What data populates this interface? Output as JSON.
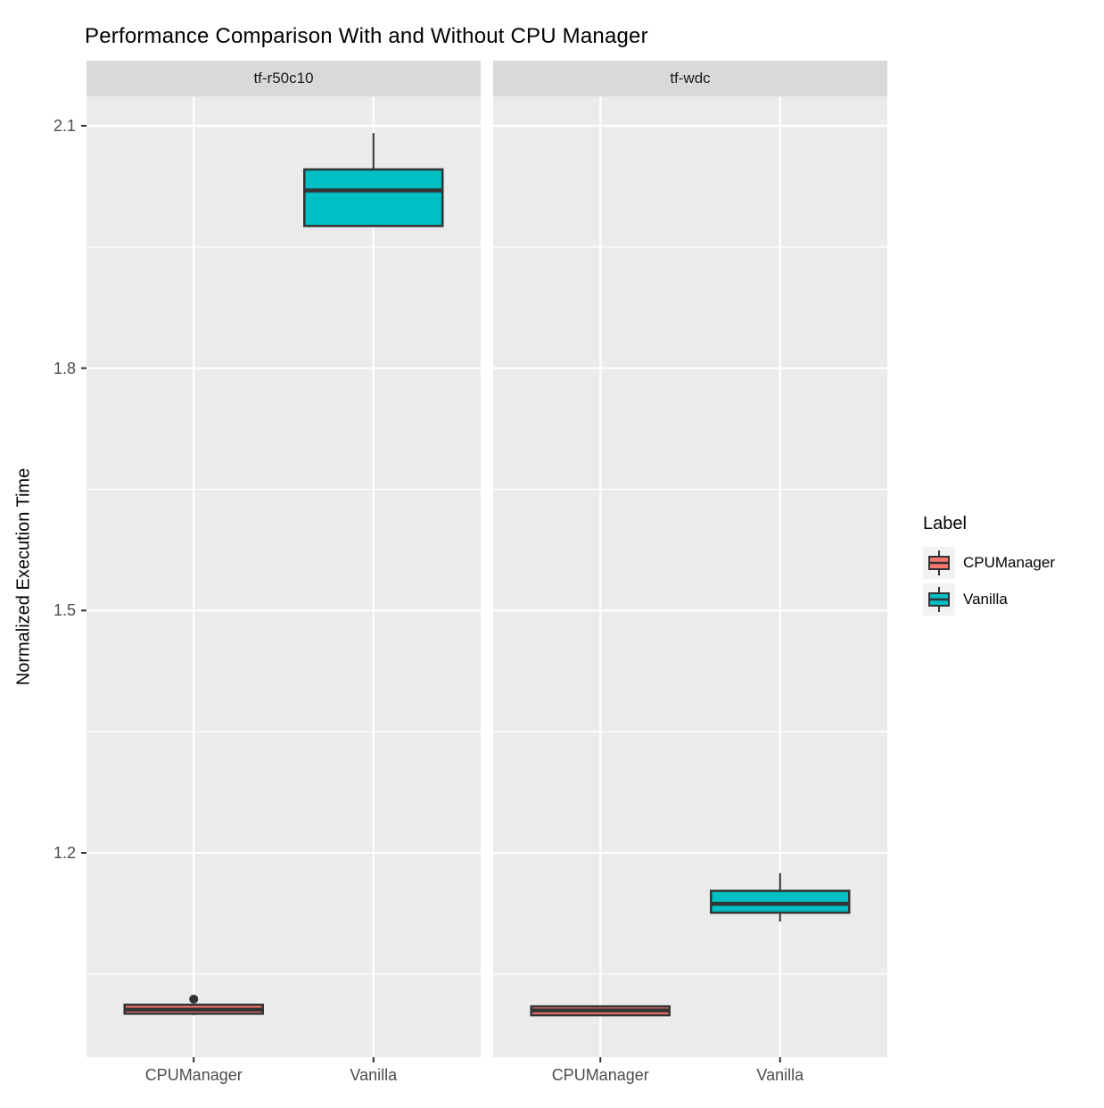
{
  "title": "Performance Comparison With and Without CPU Manager",
  "chart_data": {
    "type": "boxplot",
    "title": "Performance Comparison With and Without CPU Manager",
    "xlabel": "",
    "ylabel": "Normalized Execution Time",
    "categories": [
      "CPUManager",
      "Vanilla"
    ],
    "y_major_ticks": [
      2.1,
      1.8,
      1.5,
      1.2
    ],
    "y_minor_ticks": [
      1.95,
      1.65,
      1.35,
      1.05
    ],
    "ylim": [
      0.947,
      2.136
    ],
    "grid": "on",
    "legend_position": "right",
    "facets": [
      {
        "label": "tf-r50c10",
        "boxes": [
          {
            "category": "CPUManager",
            "series": "CPUManager",
            "min": 0.999,
            "q1": 1.001,
            "median": 1.006,
            "q3": 1.012,
            "max": 1.012,
            "outliers": [
              1.019
            ]
          },
          {
            "category": "Vanilla",
            "series": "Vanilla",
            "min": 1.976,
            "q1": 1.976,
            "median": 2.02,
            "q3": 2.046,
            "max": 2.091,
            "outliers": []
          }
        ]
      },
      {
        "label": "tf-wdc",
        "boxes": [
          {
            "category": "CPUManager",
            "series": "CPUManager",
            "min": 0.998,
            "q1": 0.999,
            "median": 1.005,
            "q3": 1.01,
            "max": 1.011,
            "outliers": []
          },
          {
            "category": "Vanilla",
            "series": "Vanilla",
            "min": 1.115,
            "q1": 1.126,
            "median": 1.137,
            "q3": 1.153,
            "max": 1.175,
            "outliers": []
          }
        ]
      }
    ]
  },
  "legend": {
    "title": "Label",
    "entries": [
      {
        "label": "CPUManager",
        "color": "#F8766D"
      },
      {
        "label": "Vanilla",
        "color": "#00BFC4"
      }
    ]
  },
  "colors": {
    "panel_background": "#EBEBEB",
    "strip_background": "#D9D9D9",
    "gridline": "#FFFFFF",
    "box_stroke": "#333333",
    "tick_mark": "#333333",
    "axis_text": "#4D4D4D",
    "cpumanager_fill": "#F8766D",
    "vanilla_fill": "#00BFC4",
    "legend_key_background": "#F2F2F2"
  }
}
